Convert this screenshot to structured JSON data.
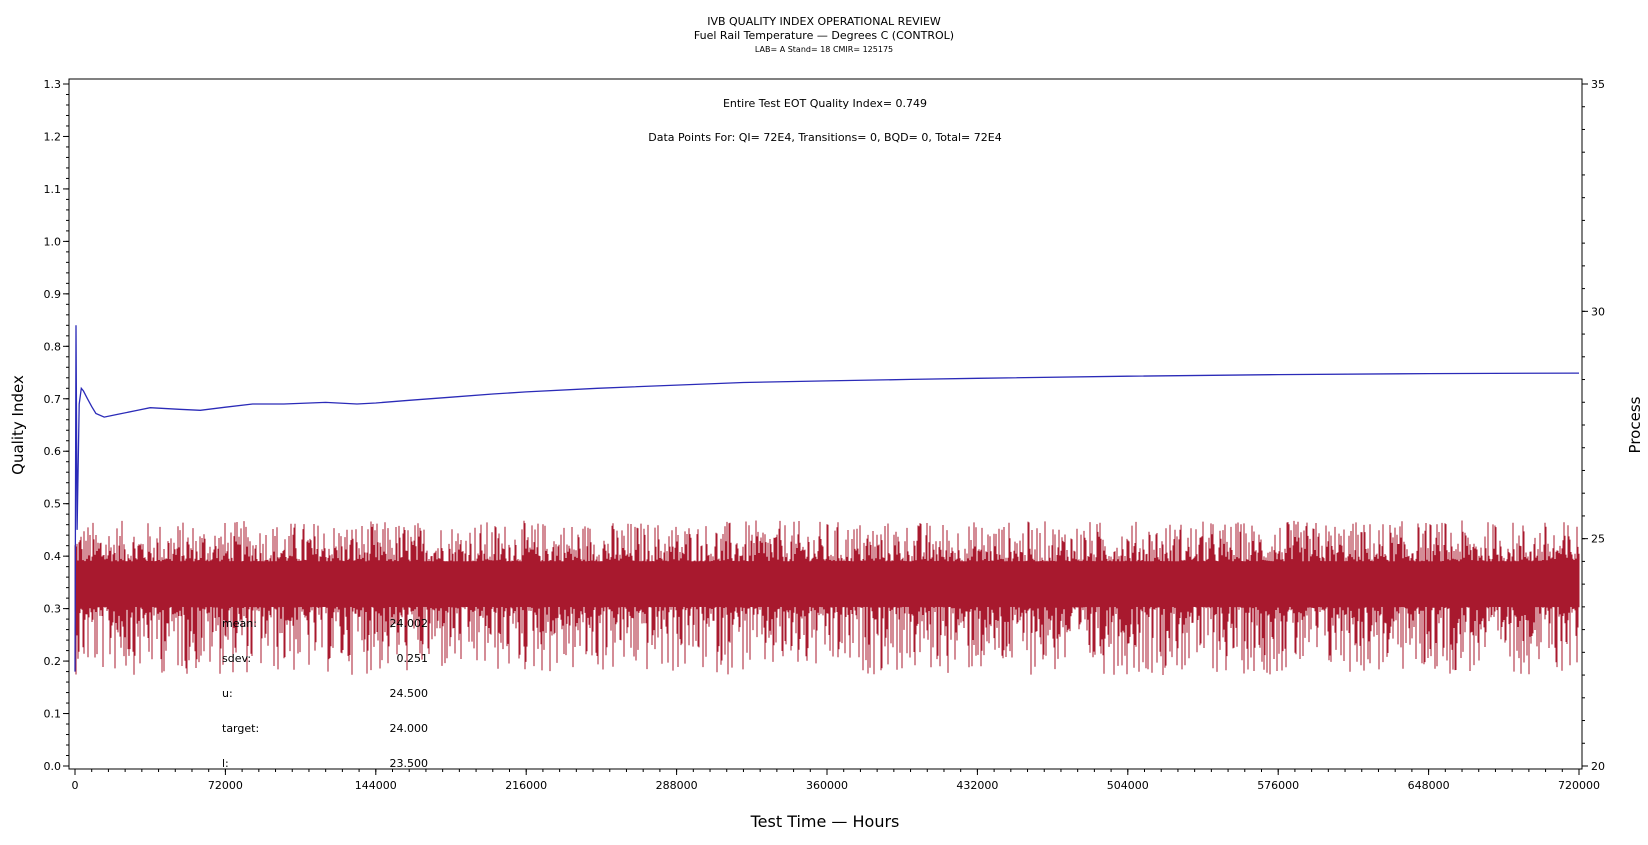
{
  "header": {
    "title": "IVB QUALITY INDEX OPERATIONAL REVIEW",
    "subtitle": "Fuel Rail Temperature — Degrees C (CONTROL)",
    "subsubtitle": "LAB= A Stand= 18 CMIR= 125175"
  },
  "annotations": {
    "eot": "Entire Test EOT Quality Index=   0.749",
    "points": "Data Points For: QI=  72E4, Transitions=      0, BQD=      0, Total=  72E4"
  },
  "stats": [
    {
      "label": "mean:",
      "value": "24.002"
    },
    {
      "label": "sdev:",
      "value": "0.251"
    },
    {
      "label": "u:",
      "value": "24.500"
    },
    {
      "label": "target:",
      "value": "24.000"
    },
    {
      "label": "l:",
      "value": "23.500"
    }
  ],
  "colors": {
    "qi_line": "#2b2bb8",
    "process": "#a8192e",
    "axis": "#000000"
  },
  "chart_data": {
    "type": "line",
    "title": "IVB QUALITY INDEX OPERATIONAL REVIEW",
    "subtitle": "Fuel Rail Temperature — Degrees C (CONTROL)",
    "xlabel": "Test Time — Hours",
    "ylabel": "Quality Index",
    "y2label": "Process",
    "xlim": [
      0,
      720000
    ],
    "ylim": [
      0,
      1.3
    ],
    "y2lim": [
      20,
      35
    ],
    "x_ticks": [
      0,
      72000,
      144000,
      216000,
      288000,
      360000,
      432000,
      504000,
      576000,
      648000,
      720000
    ],
    "x_tick_labels": [
      "0",
      "72000",
      "144000",
      "216000",
      "288000",
      "360000",
      "432000",
      "504000",
      "576000",
      "648000",
      "720000"
    ],
    "y_ticks": [
      0.0,
      0.1,
      0.2,
      0.3,
      0.4,
      0.5,
      0.6,
      0.7,
      0.8,
      0.9,
      1.0,
      1.1,
      1.2,
      1.3
    ],
    "y_tick_labels": [
      "0.0",
      "0.1",
      "0.2",
      "0.3",
      "0.4",
      "0.5",
      "0.6",
      "0.7",
      "0.8",
      "0.9",
      "1.0",
      "1.1",
      "1.2",
      "1.3"
    ],
    "y2_ticks": [
      20,
      25,
      30,
      35
    ],
    "y2_tick_labels": [
      "20",
      "25",
      "30",
      "35"
    ],
    "series": [
      {
        "name": "Quality Index",
        "axis": "left",
        "x": [
          0,
          500,
          1000,
          2000,
          3000,
          4000,
          6000,
          8000,
          10000,
          14000,
          20000,
          30000,
          36000,
          50000,
          60000,
          72000,
          85000,
          100000,
          120000,
          135000,
          144000,
          160000,
          180000,
          200000,
          216000,
          250000,
          288000,
          320000,
          360000,
          400000,
          432000,
          504000,
          576000,
          648000,
          720000
        ],
        "y": [
          0.18,
          0.84,
          0.45,
          0.69,
          0.72,
          0.715,
          0.7,
          0.685,
          0.672,
          0.665,
          0.67,
          0.678,
          0.683,
          0.68,
          0.678,
          0.684,
          0.69,
          0.69,
          0.693,
          0.69,
          0.692,
          0.697,
          0.703,
          0.709,
          0.713,
          0.72,
          0.726,
          0.731,
          0.734,
          0.737,
          0.739,
          0.743,
          0.746,
          0.748,
          0.749
        ]
      },
      {
        "name": "Process",
        "axis": "right",
        "type": "band",
        "center": 24.0,
        "typical_low": 23.5,
        "typical_high": 24.5,
        "min": 22.0,
        "max": 25.4
      }
    ],
    "grid": false
  }
}
